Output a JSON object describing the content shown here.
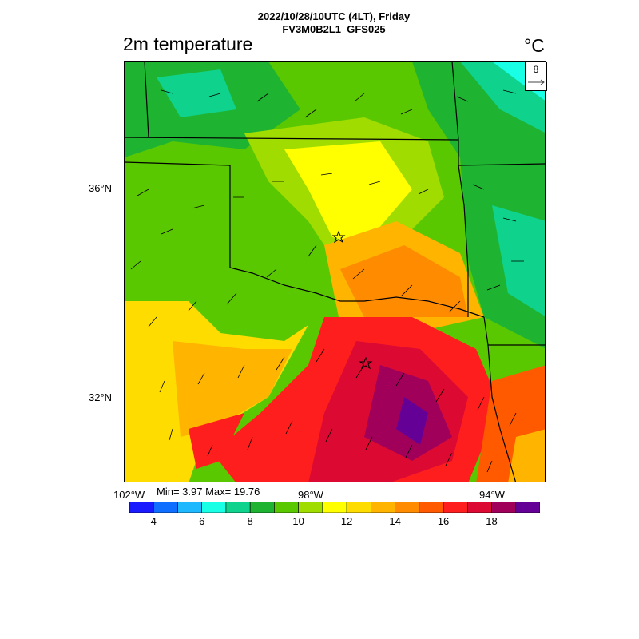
{
  "header": {
    "line1": "2022/10/28/10UTC (4LT), Friday",
    "line2": "FV3M0B2L1_GFS025"
  },
  "field": {
    "title": "2m temperature",
    "unit": "°C"
  },
  "stats": {
    "text": "Min= 3.97 Max= 19.76",
    "min": 3.97,
    "max": 19.76
  },
  "wind_reference": {
    "label": "8",
    "speed": 8
  },
  "axes": {
    "lat_labels": [
      "36°N",
      "32°N"
    ],
    "lon_labels": [
      "102°W",
      "98°W",
      "94°W"
    ]
  },
  "colorbar": {
    "colors": [
      "#1a1aff",
      "#0f6eff",
      "#1eb8ff",
      "#19ffe6",
      "#0fd28c",
      "#1eb432",
      "#5ac800",
      "#a0dc00",
      "#ffff00",
      "#ffdc00",
      "#ffb400",
      "#ff8c00",
      "#ff5a00",
      "#ff1e1e",
      "#dc0a32",
      "#a0005a",
      "#640096"
    ],
    "labels": [
      "4",
      "6",
      "8",
      "10",
      "12",
      "14",
      "16",
      "18"
    ]
  },
  "markers": {
    "icon": "star-icon",
    "count": 2
  }
}
